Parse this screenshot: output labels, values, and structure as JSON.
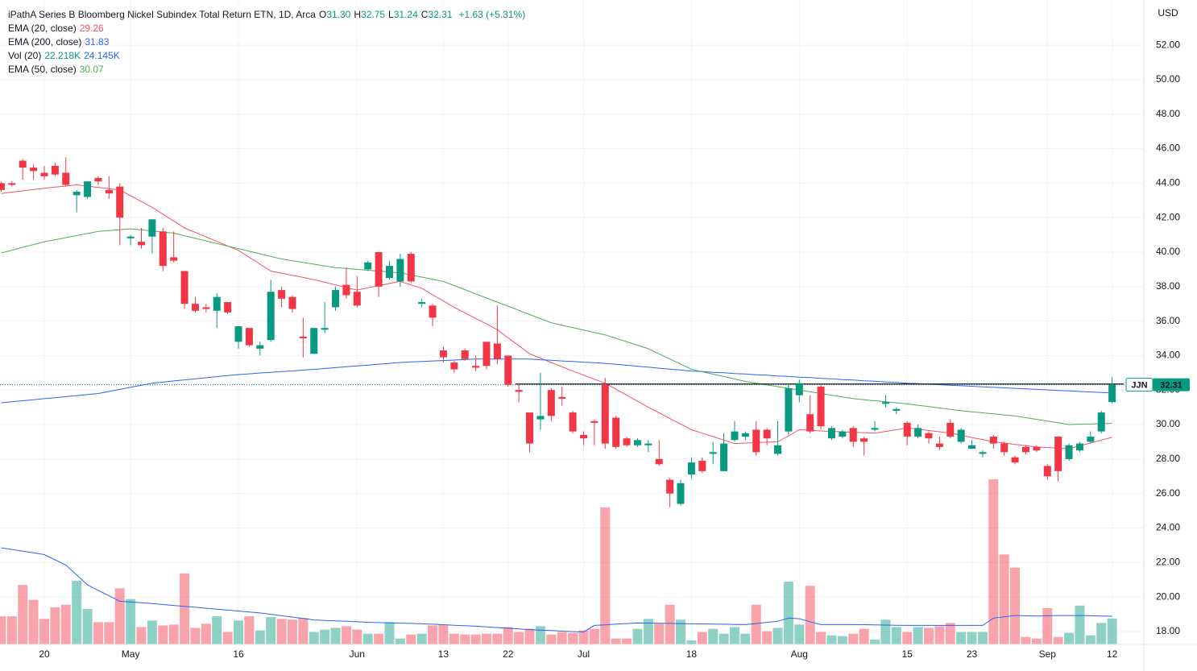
{
  "chart_data": {
    "type": "candlestick",
    "title": "iPathA Series B Bloomberg Nickel Subindex Total Return ETN, 1D, Arca",
    "ohlc_legend": [
      {
        "key": "O",
        "label": "31.30"
      },
      {
        "key": "H",
        "label": "32.75"
      },
      {
        "key": "L",
        "label": "31.24"
      },
      {
        "key": "C",
        "label": "32.31"
      }
    ],
    "change_label": "+1.63 (+5.31%)",
    "y_axis_label": "USD",
    "last_price": {
      "symbol": "JJN",
      "label": "32.31"
    },
    "level_line": 32.35,
    "grid": true,
    "up_color": "#089981",
    "down_color": "#f23645",
    "ylim": [
      17.25,
      54.62
    ],
    "yticks": [
      {
        "value": 18,
        "label": "18.00"
      },
      {
        "value": 20,
        "label": "20.00"
      },
      {
        "value": 22,
        "label": "22.00"
      },
      {
        "value": 24,
        "label": "24.00"
      },
      {
        "value": 26,
        "label": "26.00"
      },
      {
        "value": 28,
        "label": "28.00"
      },
      {
        "value": 30,
        "label": "30.00"
      },
      {
        "value": 32,
        "label": "32.00"
      },
      {
        "value": 34,
        "label": "34.00"
      },
      {
        "value": 36,
        "label": "36.00"
      },
      {
        "value": 38,
        "label": "38.00"
      },
      {
        "value": 40,
        "label": "40.00"
      },
      {
        "value": 42,
        "label": "42.00"
      },
      {
        "value": 44,
        "label": "44.00"
      },
      {
        "value": 46,
        "label": "46.00"
      },
      {
        "value": 48,
        "label": "48.00"
      },
      {
        "value": 50,
        "label": "50.00"
      },
      {
        "value": 52,
        "label": "52.00"
      }
    ],
    "categories": [
      null,
      null,
      null,
      null,
      "20",
      null,
      null,
      null,
      null,
      null,
      null,
      null,
      "May",
      null,
      null,
      null,
      null,
      null,
      null,
      null,
      null,
      null,
      "16",
      null,
      null,
      null,
      null,
      null,
      null,
      null,
      null,
      null,
      null,
      "Jun",
      null,
      null,
      null,
      null,
      null,
      null,
      null,
      "13",
      null,
      null,
      null,
      null,
      null,
      "22",
      null,
      null,
      null,
      null,
      null,
      null,
      "Jul",
      null,
      null,
      null,
      null,
      null,
      null,
      null,
      null,
      null,
      "18",
      null,
      null,
      null,
      null,
      null,
      null,
      null,
      null,
      null,
      "Aug",
      null,
      null,
      null,
      null,
      null,
      null,
      null,
      null,
      null,
      "15",
      null,
      null,
      null,
      null,
      null,
      "23",
      null,
      null,
      null,
      null,
      null,
      null,
      "Sep",
      null,
      null,
      null,
      null,
      null,
      "12"
    ],
    "open": [
      44.0,
      44.0,
      45.3,
      44.9,
      44.6,
      45.0,
      44.6,
      43.3,
      43.2,
      44.3,
      43.6,
      43.8,
      40.8,
      40.6,
      40.9,
      41.2,
      39.7,
      38.9,
      37.0,
      36.8,
      36.6,
      37.1,
      34.8,
      35.6,
      34.4,
      34.9,
      37.8,
      37.4,
      35.1,
      34.1,
      35.5,
      36.8,
      38.1,
      37.7,
      39.0,
      40.0,
      38.5,
      38.3,
      39.9,
      37.0,
      36.9,
      34.3,
      33.6,
      34.3,
      33.4,
      34.8,
      34.7,
      34.0,
      32.0,
      30.7,
      30.3,
      32.0,
      31.6,
      30.7,
      29.4,
      30.2,
      32.3,
      30.4,
      29.2,
      28.8,
      28.8,
      28.0,
      26.8,
      25.4,
      27.1,
      27.9,
      28.3,
      27.3,
      29.1,
      29.3,
      29.7,
      29.7,
      28.3,
      29.6,
      31.7,
      30.6,
      32.2,
      29.2,
      29.3,
      29.8,
      29.2,
      29.7,
      31.2,
      30.8,
      30.1,
      29.3,
      29.5,
      28.9,
      30.1,
      29.0,
      28.6,
      28.3,
      29.3,
      28.9,
      28.1,
      28.7,
      28.7,
      27.6,
      29.3,
      28.0,
      28.5,
      29.0,
      29.6,
      31.3
    ],
    "high": [
      44.1,
      44.1,
      45.4,
      45.1,
      45.0,
      45.2,
      45.5,
      43.6,
      44.1,
      44.4,
      44.4,
      44.0,
      41.0,
      41.4,
      41.9,
      41.4,
      41.2,
      38.9,
      37.4,
      37.0,
      37.6,
      37.1,
      35.7,
      35.6,
      34.8,
      38.4,
      38.0,
      37.5,
      36.2,
      35.6,
      37.1,
      38.0,
      39.1,
      38.6,
      39.5,
      40.0,
      39.5,
      39.9,
      40.0,
      37.3,
      37.0,
      34.5,
      33.7,
      34.4,
      34.0,
      34.8,
      36.9,
      34.0,
      32.4,
      30.7,
      33.0,
      32.1,
      32.2,
      30.8,
      29.6,
      30.3,
      32.7,
      30.5,
      29.3,
      29.2,
      29.1,
      29.1,
      26.9,
      26.8,
      28.1,
      28.1,
      29.0,
      29.5,
      30.2,
      29.6,
      30.2,
      29.8,
      30.2,
      32.4,
      32.6,
      31.7,
      32.3,
      29.9,
      29.7,
      29.9,
      29.3,
      30.2,
      31.7,
      31.0,
      30.2,
      30.0,
      29.6,
      29.3,
      30.3,
      29.8,
      29.1,
      28.5,
      29.4,
      29.0,
      28.2,
      28.8,
      28.8,
      27.7,
      29.3,
      28.9,
      29.0,
      29.6,
      30.8,
      32.75
    ],
    "low": [
      43.5,
      43.8,
      44.2,
      44.2,
      44.2,
      44.4,
      43.8,
      42.3,
      43.1,
      43.9,
      43.1,
      40.4,
      40.4,
      40.2,
      39.9,
      38.9,
      39.4,
      36.7,
      36.5,
      36.5,
      35.6,
      36.4,
      34.4,
      34.5,
      34.0,
      34.8,
      36.8,
      36.5,
      33.9,
      34.1,
      35.3,
      36.6,
      37.3,
      36.8,
      38.9,
      37.4,
      38.4,
      38.0,
      38.2,
      36.8,
      35.7,
      33.6,
      33.0,
      33.7,
      33.1,
      33.2,
      33.5,
      32.2,
      31.3,
      28.4,
      29.7,
      30.2,
      31.1,
      29.5,
      28.8,
      28.8,
      28.6,
      28.6,
      28.7,
      28.7,
      28.4,
      27.6,
      25.2,
      25.3,
      26.9,
      27.2,
      27.7,
      27.3,
      29.0,
      29.1,
      28.2,
      28.8,
      28.2,
      29.4,
      31.3,
      29.5,
      29.7,
      29.1,
      29.2,
      28.7,
      28.2,
      29.6,
      31.0,
      30.6,
      28.8,
      29.2,
      28.9,
      28.5,
      29.2,
      28.9,
      28.6,
      28.1,
      28.6,
      28.2,
      27.7,
      28.3,
      28.4,
      26.8,
      26.7,
      27.9,
      28.4,
      28.9,
      29.5,
      31.24
    ],
    "close": [
      43.6,
      43.9,
      44.9,
      44.7,
      44.4,
      44.5,
      43.9,
      43.5,
      44.1,
      44.1,
      43.4,
      42.0,
      40.9,
      40.4,
      41.9,
      39.2,
      39.5,
      37.0,
      36.6,
      36.7,
      37.4,
      36.5,
      35.7,
      34.6,
      34.6,
      37.7,
      37.3,
      36.7,
      35.0,
      35.6,
      35.6,
      37.8,
      37.5,
      36.9,
      39.4,
      38.0,
      39.2,
      39.6,
      38.3,
      37.1,
      36.2,
      33.9,
      33.2,
      33.8,
      33.3,
      33.4,
      33.8,
      32.3,
      31.9,
      28.9,
      30.5,
      30.5,
      31.5,
      29.6,
      29.2,
      30.1,
      28.9,
      28.7,
      28.8,
      29.1,
      28.9,
      27.7,
      26.0,
      26.6,
      27.8,
      27.3,
      28.4,
      28.9,
      29.6,
      29.5,
      28.4,
      29.2,
      28.8,
      32.1,
      32.4,
      29.6,
      29.9,
      29.8,
      29.6,
      29.0,
      29.0,
      29.8,
      31.3,
      30.9,
      29.3,
      29.8,
      29.2,
      28.7,
      29.3,
      29.7,
      28.8,
      28.4,
      28.9,
      28.4,
      27.8,
      28.4,
      28.5,
      27.0,
      27.3,
      28.8,
      28.9,
      29.3,
      30.7,
      32.31
    ],
    "series": [
      {
        "name": "EMA (20, close)",
        "value_label": "29.26",
        "color": "#f7525f",
        "values": [
          43.4,
          43.48,
          43.55,
          43.63,
          43.7,
          43.77,
          43.83,
          43.9,
          43.83,
          43.75,
          43.68,
          43.6,
          43.27,
          42.93,
          42.6,
          42.2,
          41.8,
          41.4,
          41.14,
          40.88,
          40.62,
          40.36,
          40.1,
          39.7,
          39.3,
          38.9,
          38.78,
          38.65,
          38.53,
          38.4,
          38.25,
          38.1,
          37.95,
          37.8,
          37.93,
          38.05,
          38.18,
          38.3,
          38.1,
          37.9,
          37.53,
          37.17,
          36.8,
          36.48,
          36.15,
          35.83,
          35.5,
          35.03,
          34.57,
          34.1,
          33.85,
          33.6,
          33.35,
          33.1,
          32.87,
          32.63,
          32.4,
          32.05,
          31.7,
          31.35,
          31.0,
          30.68,
          30.35,
          30.03,
          29.7,
          29.5,
          29.3,
          29.1,
          28.9,
          28.93,
          28.95,
          28.98,
          29.0,
          29.35,
          29.7,
          29.67,
          29.63,
          29.6,
          29.58,
          29.55,
          29.53,
          29.5,
          29.6,
          29.7,
          29.8,
          29.73,
          29.65,
          29.58,
          29.5,
          29.38,
          29.25,
          29.13,
          29.0,
          28.93,
          28.85,
          28.78,
          28.7,
          28.67,
          28.63,
          28.6,
          28.77,
          28.93,
          29.1,
          29.26
        ]
      },
      {
        "name": "EMA (200, close)",
        "value_label": "31.83",
        "color": "#2962ff",
        "values": [
          31.26,
          31.32,
          31.38,
          31.44,
          31.5,
          31.56,
          31.62,
          31.68,
          31.74,
          31.8,
          31.92,
          32.04,
          32.16,
          32.28,
          32.4,
          32.46,
          32.53,
          32.59,
          32.65,
          32.71,
          32.78,
          32.84,
          32.9,
          32.94,
          32.99,
          33.03,
          33.07,
          33.11,
          33.16,
          33.2,
          33.25,
          33.3,
          33.35,
          33.4,
          33.45,
          33.5,
          33.55,
          33.6,
          33.63,
          33.66,
          33.69,
          33.71,
          33.74,
          33.77,
          33.8,
          33.8,
          33.8,
          33.8,
          33.8,
          33.8,
          33.76,
          33.73,
          33.69,
          33.66,
          33.62,
          33.59,
          33.55,
          33.49,
          33.44,
          33.38,
          33.33,
          33.27,
          33.21,
          33.16,
          33.1,
          33.07,
          33.03,
          33.0,
          32.96,
          32.93,
          32.89,
          32.86,
          32.82,
          32.79,
          32.75,
          32.72,
          32.68,
          32.65,
          32.61,
          32.58,
          32.54,
          32.51,
          32.47,
          32.44,
          32.4,
          32.37,
          32.34,
          32.31,
          32.28,
          32.25,
          32.22,
          32.19,
          32.16,
          32.13,
          32.1,
          32.07,
          32.04,
          32.01,
          31.98,
          31.95,
          31.92,
          31.89,
          31.86,
          31.83
        ]
      },
      {
        "name": "EMA (50, close)",
        "value_label": "30.07",
        "color": "#4caf50",
        "values": [
          39.95,
          40.11,
          40.28,
          40.44,
          40.6,
          40.72,
          40.84,
          40.96,
          41.08,
          41.2,
          41.25,
          41.3,
          41.35,
          41.29,
          41.23,
          41.16,
          41.1,
          40.95,
          40.8,
          40.65,
          40.5,
          40.35,
          40.2,
          40.05,
          39.9,
          39.75,
          39.6,
          39.5,
          39.4,
          39.3,
          39.2,
          39.1,
          39.05,
          39.0,
          38.95,
          38.9,
          38.85,
          38.8,
          38.68,
          38.55,
          38.43,
          38.3,
          38.06,
          37.82,
          37.58,
          37.34,
          37.1,
          36.86,
          36.62,
          36.38,
          36.14,
          35.9,
          35.76,
          35.62,
          35.48,
          35.34,
          35.2,
          35.0,
          34.8,
          34.6,
          34.4,
          34.1,
          33.8,
          33.5,
          33.2,
          33.06,
          32.92,
          32.78,
          32.64,
          32.5,
          32.4,
          32.3,
          32.2,
          32.1,
          32.0,
          31.9,
          31.8,
          31.7,
          31.6,
          31.5,
          31.44,
          31.38,
          31.32,
          31.26,
          31.2,
          31.12,
          31.04,
          30.96,
          30.88,
          30.8,
          30.74,
          30.68,
          30.62,
          30.56,
          30.5,
          30.4,
          30.3,
          30.2,
          30.1,
          30.0,
          30.02,
          30.03,
          30.05,
          30.07
        ]
      }
    ],
    "volume": {
      "name": "Vol (20)",
      "value_label": "22.218K",
      "up_color": "rgba(8,153,129,0.45)",
      "down_color": "rgba(242,54,69,0.45)",
      "lim": [
        0,
        145000
      ],
      "values": [
        24100,
        24100,
        51000,
        38200,
        21900,
        31800,
        34000,
        54500,
        30400,
        19100,
        19100,
        48100,
        38900,
        14900,
        20500,
        16300,
        17000,
        60900,
        14200,
        17700,
        24100,
        10600,
        20500,
        24100,
        12000,
        23400,
        21900,
        21200,
        22600,
        10600,
        12700,
        14200,
        15600,
        12700,
        9200,
        9200,
        19100,
        5000,
        8500,
        9200,
        16300,
        17000,
        9200,
        8500,
        8500,
        9200,
        9200,
        14900,
        10600,
        13400,
        15600,
        8500,
        10600,
        9900,
        12000,
        13400,
        117500,
        5000,
        5000,
        13400,
        21900,
        17700,
        34000,
        21200,
        3500,
        10600,
        13400,
        9200,
        14900,
        9200,
        34000,
        11300,
        14200,
        53800,
        17000,
        50200,
        10600,
        7800,
        7100,
        9200,
        13400,
        4200,
        21200,
        14900,
        10600,
        14900,
        14200,
        15600,
        18400,
        10600,
        10600,
        10600,
        141500,
        77100,
        65800,
        6400,
        5000,
        31100,
        6400,
        9900,
        33300,
        7800,
        18400,
        22218
      ],
      "ma": {
        "value_label": "24.145K",
        "color": "#2962ff",
        "values": [
          82800,
          81400,
          79900,
          78500,
          77000,
          72500,
          68000,
          59500,
          51000,
          46300,
          41700,
          37000,
          36300,
          35700,
          35000,
          34200,
          33400,
          32600,
          31800,
          31000,
          30200,
          29400,
          28600,
          27800,
          27000,
          25800,
          24600,
          23400,
          22200,
          21000,
          20600,
          20200,
          19800,
          19400,
          19000,
          18700,
          18500,
          18200,
          18000,
          17700,
          17300,
          16900,
          16400,
          16000,
          15600,
          15000,
          14400,
          13900,
          13300,
          12700,
          12300,
          11900,
          11400,
          11000,
          10600,
          16300,
          16800,
          17400,
          17900,
          18400,
          18300,
          18100,
          18000,
          17800,
          17700,
          17600,
          17400,
          17300,
          17100,
          17000,
          17900,
          18900,
          19800,
          22600,
          22000,
          19500,
          17000,
          17000,
          17000,
          17000,
          16900,
          16700,
          16600,
          16400,
          16300,
          16300,
          16300,
          16300,
          16300,
          16300,
          16300,
          16300,
          22600,
          23700,
          24800,
          24600,
          24300,
          24500,
          24800,
          24800,
          24800,
          24600,
          24400,
          24145
        ]
      }
    }
  }
}
